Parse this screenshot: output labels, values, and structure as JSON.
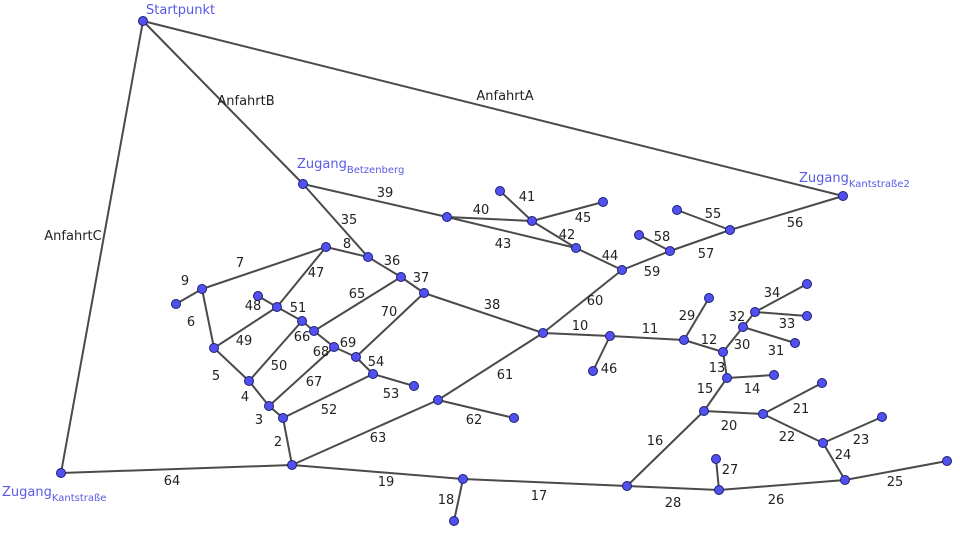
{
  "colors": {
    "edge": "#4a4a4a",
    "node_fill": "#5151f2",
    "node_stroke": "#1e1e6e",
    "node_label": "#5a5ae6"
  },
  "node_labels": {
    "start": {
      "main": "Startpunkt",
      "sub": ""
    },
    "betzenberg": {
      "main": "Zugang",
      "sub": "Betzenberg"
    },
    "kantstrasse2": {
      "main": "Zugang",
      "sub": "Kantstraße2"
    },
    "kantstrasse": {
      "main": "Zugang",
      "sub": "Kantstraße"
    }
  },
  "edge_labels": [
    "AnfahrtA",
    "AnfahrtB",
    "AnfahrtC",
    "64",
    "2",
    "3",
    "4",
    "5",
    "6",
    "9",
    "7",
    "8",
    "35",
    "36",
    "37",
    "39",
    "40",
    "41",
    "45",
    "42",
    "43",
    "44",
    "59",
    "57",
    "58",
    "55",
    "56",
    "60",
    "61",
    "38",
    "10",
    "11",
    "46",
    "29",
    "12",
    "30",
    "32",
    "34",
    "33",
    "31",
    "13",
    "14",
    "15",
    "20",
    "21",
    "22",
    "23",
    "24",
    "25",
    "26",
    "27",
    "28",
    "16",
    "17",
    "18",
    "19",
    "63",
    "62",
    "52",
    "53",
    "54",
    "69",
    "68",
    "66",
    "51",
    "48",
    "47",
    "49",
    "50",
    "67",
    "65",
    "70"
  ]
}
